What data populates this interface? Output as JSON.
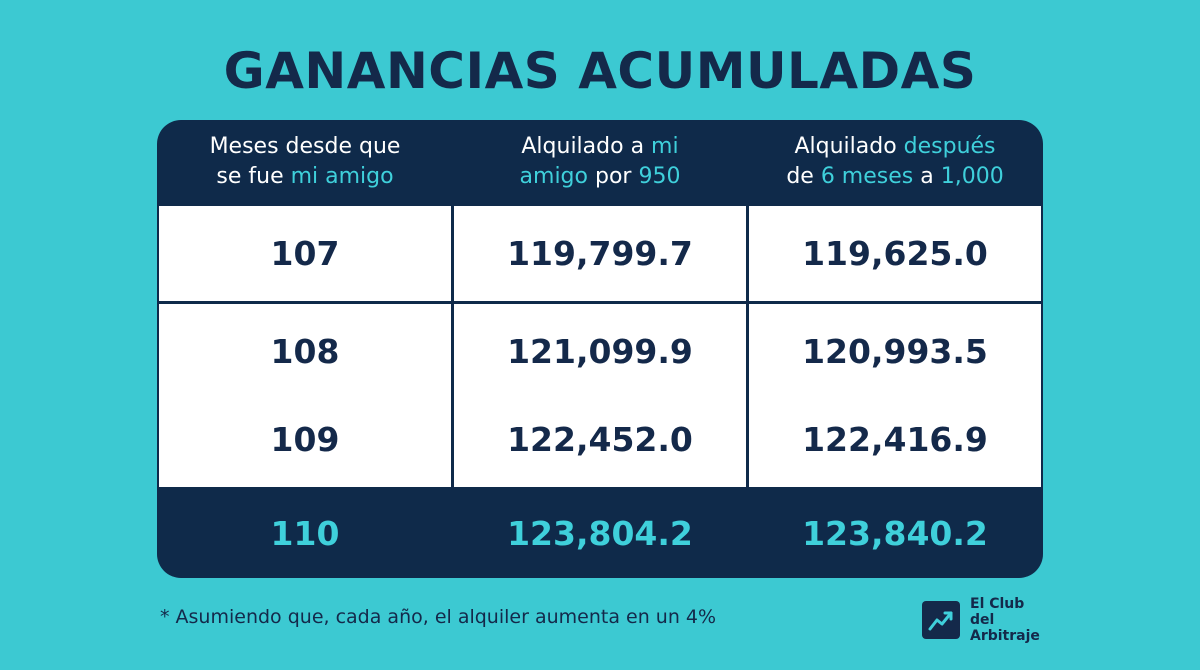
{
  "title": "GANANCIAS ACUMULADAS",
  "headers": [
    [
      {
        "t": "Meses desde que",
        "h": false
      },
      {
        "t": "se fue ",
        "h": false
      },
      {
        "t": "mi amigo",
        "h": true
      }
    ],
    [
      {
        "t": "Alquilado a ",
        "h": false
      },
      {
        "t": "mi",
        "h": true
      },
      {
        "t": "amigo",
        "h": true
      },
      {
        "t": " por ",
        "h": false
      },
      {
        "t": "950",
        "h": true
      }
    ],
    [
      {
        "t": "Alquilado ",
        "h": false
      },
      {
        "t": "después",
        "h": true
      },
      {
        "t": "de ",
        "h": false
      },
      {
        "t": "6 meses",
        "h": true
      },
      {
        "t": " a ",
        "h": false
      },
      {
        "t": "1,000",
        "h": true
      }
    ]
  ],
  "rows": [
    [
      "107",
      "119,799.7",
      "119,625.0"
    ],
    [
      "108",
      "121,099.9",
      "120,993.5"
    ],
    [
      "109",
      "122,452.0",
      "122,416.9"
    ],
    [
      "110",
      "123,804.2",
      "123,840.2"
    ]
  ],
  "footnote": "* Asumiendo que, cada año, el alquiler aumenta en un 4%",
  "logo": {
    "line1": "El Club",
    "line2": "del",
    "line3": "Arbitraje"
  },
  "colors": {
    "background": "#3cc9d2",
    "navy": "#0f2a4a",
    "accent": "#3fd0db"
  }
}
